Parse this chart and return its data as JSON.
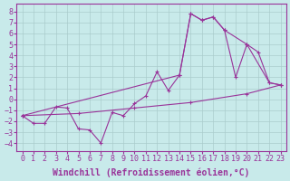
{
  "bg_color": "#c8eaea",
  "line_color": "#993399",
  "grid_color": "#aacccc",
  "xlabel": "Windchill (Refroidissement éolien,°C)",
  "xlim": [
    -0.5,
    23.5
  ],
  "ylim": [
    -4.7,
    8.7
  ],
  "xticks": [
    0,
    1,
    2,
    3,
    4,
    5,
    6,
    7,
    8,
    9,
    10,
    11,
    12,
    13,
    14,
    15,
    16,
    17,
    18,
    19,
    20,
    21,
    22,
    23
  ],
  "yticks": [
    -4,
    -3,
    -2,
    -1,
    0,
    1,
    2,
    3,
    4,
    5,
    6,
    7,
    8
  ],
  "font_family": "monospace",
  "xlabel_fontsize": 7,
  "tick_fontsize": 6,
  "line1_x": [
    0,
    1,
    2,
    3,
    4,
    5,
    6,
    7,
    8,
    9,
    10,
    11,
    12,
    13,
    14,
    15,
    16,
    17,
    18,
    19,
    20,
    21,
    22,
    23
  ],
  "line1_y": [
    -1.5,
    -2.2,
    -2.2,
    -0.7,
    -0.8,
    -2.7,
    -2.8,
    -4.0,
    -1.2,
    -1.5,
    -0.4,
    0.3,
    2.5,
    0.8,
    2.2,
    7.8,
    7.2,
    7.5,
    6.3,
    2.0,
    5.0,
    4.3,
    1.5,
    1.3
  ],
  "line2_x": [
    0,
    14,
    15,
    16,
    17,
    18,
    20,
    22,
    23
  ],
  "line2_y": [
    -1.5,
    2.2,
    7.8,
    7.2,
    7.5,
    6.3,
    5.0,
    1.5,
    1.3
  ],
  "line3_x": [
    0,
    5,
    10,
    15,
    20,
    23
  ],
  "line3_y": [
    -1.5,
    -1.3,
    -0.8,
    -0.3,
    0.5,
    1.3
  ]
}
